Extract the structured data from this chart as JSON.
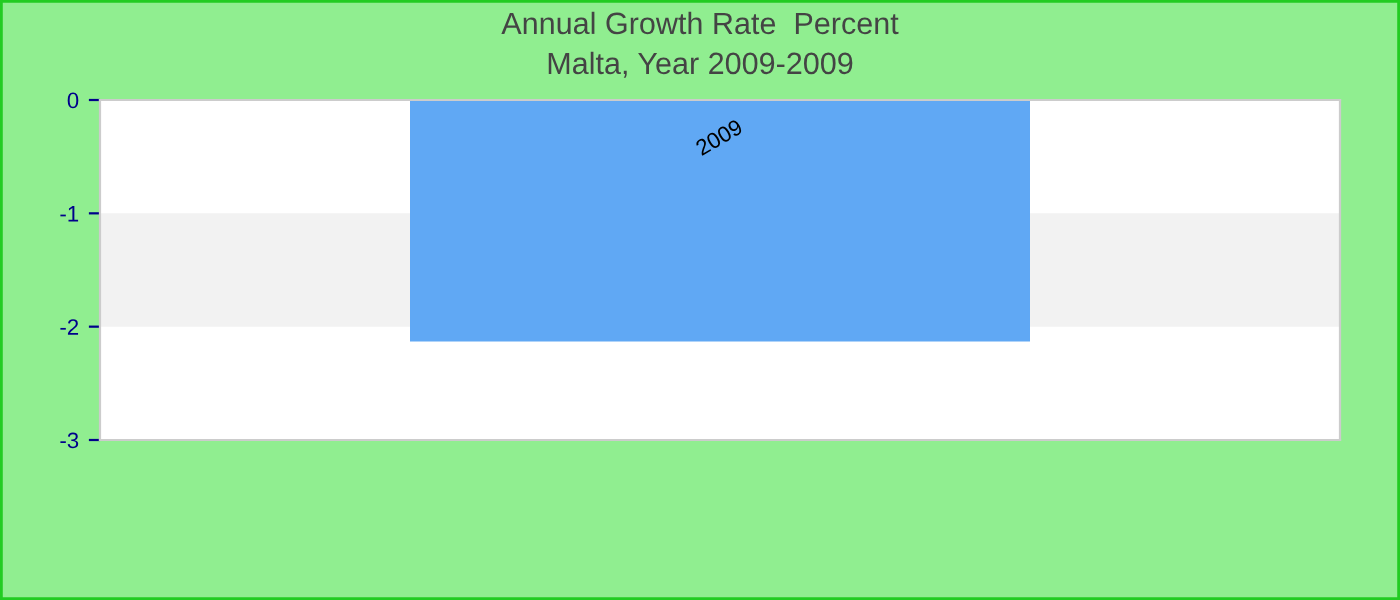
{
  "chart_data": {
    "type": "bar",
    "title": "Annual Growth Rate  Percent",
    "subtitle": "Malta, Year 2009-2009",
    "categories": [
      "2009"
    ],
    "series": [
      {
        "color": "#60a8f4",
        "values": [
          -2.13
        ]
      }
    ],
    "ylim": [
      -3,
      0
    ],
    "yticks": [
      -3,
      -2,
      -1,
      0
    ],
    "bands": [
      {
        "axis": "y",
        "from": -2,
        "to": -1,
        "color": "#f2f2f2"
      }
    ],
    "grid": false
  }
}
